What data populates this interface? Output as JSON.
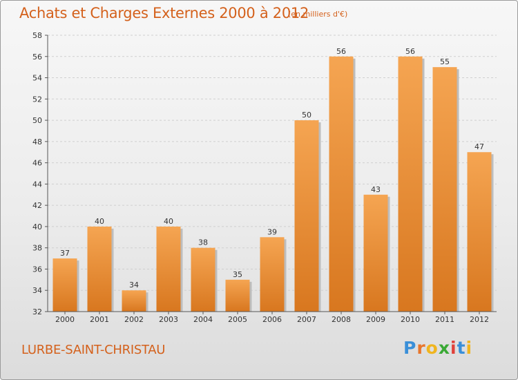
{
  "title": "Achats et Charges Externes 2000 à 2012",
  "subtitle": "(en milliers d'€)",
  "location": "LURBE-SAINT-CHRISTAU",
  "logo": {
    "text": "Proxiti",
    "letters": [
      "P",
      "r",
      "o",
      "x",
      "i",
      "t",
      "i"
    ],
    "letter_colors": [
      "#3a8fd8",
      "#e8762c",
      "#f0b51f",
      "#3aa935",
      "#e0413a",
      "#3a8fd8",
      "#f0b51f"
    ]
  },
  "colors": {
    "bar_top": "#f5a552",
    "bar_bottom": "#d8771f",
    "bar_shadow": "#bdbdbd",
    "grid": "#cfcfcf",
    "axis": "#555555",
    "title": "#d4611c"
  },
  "chart_data": {
    "type": "bar",
    "categories": [
      "2000",
      "2001",
      "2002",
      "2003",
      "2004",
      "2005",
      "2006",
      "2007",
      "2008",
      "2009",
      "2010",
      "2011",
      "2012"
    ],
    "values": [
      37,
      40,
      34,
      40,
      38,
      35,
      39,
      50,
      56,
      43,
      56,
      55,
      47
    ],
    "title": "Achats et Charges Externes 2000 à 2012",
    "subtitle": "(en milliers d'€)",
    "ylim": [
      32,
      58
    ],
    "yticks": [
      32,
      34,
      36,
      38,
      40,
      42,
      44,
      46,
      48,
      50,
      52,
      54,
      56,
      58
    ],
    "grid": "horizontal dashed",
    "data_labels": true
  }
}
